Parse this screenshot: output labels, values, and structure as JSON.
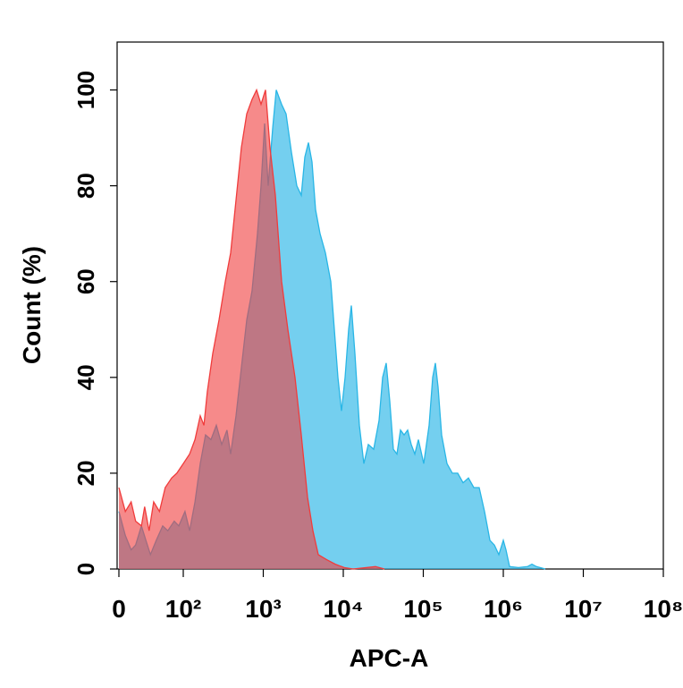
{
  "chart_data": {
    "type": "area",
    "xlabel": "APC-A",
    "ylabel": "Count  (%)",
    "xscale": "biexponential",
    "xlim": [
      0,
      100000000
    ],
    "ylim": [
      0,
      110
    ],
    "xticks": [
      0,
      {
        "value": 100,
        "label": "10²"
      },
      {
        "value": 1000,
        "label": "10³"
      },
      {
        "value": 10000,
        "label": "10⁴"
      },
      {
        "value": 100000,
        "label": "10⁵"
      },
      {
        "value": 1000000,
        "label": "10⁶"
      },
      {
        "value": 10000000,
        "label": "10⁷"
      },
      {
        "value": 100000000,
        "label": "10⁸"
      }
    ],
    "yticks": [
      0,
      20,
      40,
      60,
      80,
      100
    ],
    "series": [
      {
        "color": "#29b6e6",
        "x": [
          0,
          10,
          19,
          26,
          35,
          42,
          49,
          58,
          68,
          76,
          86,
          93,
          105,
          120,
          140,
          163,
          190,
          222,
          259,
          302,
          352,
          391,
          456,
          532,
          621,
          724,
          845,
          938,
          1040,
          1151,
          1309,
          1452,
          1695,
          1928,
          2250,
          2625,
          2986,
          3311,
          3668,
          4063,
          4508,
          5118,
          5984,
          6982,
          7727,
          8570,
          9506,
          10520,
          11670,
          12610,
          13970,
          15890,
          18070,
          20560,
          23990,
          27990,
          31050,
          34360,
          38100,
          42270,
          46770,
          51880,
          57540,
          63680,
          70630,
          78340,
          86900,
          101400,
          118300,
          130900,
          141600,
          152800,
          169400,
          197700,
          230700,
          269200,
          314100,
          366400,
          427600,
          498900,
          582100,
          679200,
          772700,
          879000,
          1000000,
          1081000,
          1197000,
          1549000,
          2005000,
          2280000,
          2590000,
          3351000
        ],
        "values": [
          12,
          7,
          4,
          5,
          9,
          6,
          3,
          6,
          9,
          8,
          10,
          9,
          12,
          8,
          14,
          22,
          28,
          27,
          30,
          26,
          29,
          24,
          32,
          42,
          52,
          58,
          70,
          80,
          93,
          80,
          92,
          100,
          97,
          95,
          87,
          80,
          78,
          86,
          89,
          85,
          75,
          70,
          66,
          60,
          50,
          40,
          33,
          40,
          50,
          55,
          45,
          30,
          22,
          26,
          25,
          31,
          40,
          43,
          35,
          25,
          24,
          29,
          28,
          29,
          26,
          24,
          27,
          22,
          30,
          40,
          43,
          38,
          28,
          22,
          20,
          20,
          18,
          19,
          17,
          17,
          12,
          6,
          5,
          3,
          6,
          4,
          0.5,
          0.3,
          0.5,
          1,
          0.5,
          0
        ]
      },
      {
        "color": "#f03c3c",
        "x": [
          0,
          10,
          19,
          26,
          35,
          40,
          47,
          54,
          63,
          72,
          82,
          90,
          100,
          120,
          140,
          163,
          181,
          200,
          234,
          280,
          335,
          391,
          456,
          532,
          621,
          724,
          824,
          938,
          1067,
          1213,
          1416,
          1695,
          2028,
          2493,
          2986,
          3573,
          4169,
          4865,
          6138,
          7932,
          10250,
          13270,
          25230,
          32660
        ],
        "values": [
          17,
          12,
          14,
          10,
          9,
          13,
          8,
          14,
          12,
          17,
          19,
          20,
          22,
          24,
          27,
          32,
          30,
          37,
          45,
          52,
          60,
          66,
          77,
          88,
          95,
          98,
          100,
          97,
          100,
          88,
          78,
          60,
          50,
          40,
          28,
          15,
          8,
          3,
          2,
          1,
          0.3,
          0,
          0.5,
          0
        ]
      }
    ]
  }
}
